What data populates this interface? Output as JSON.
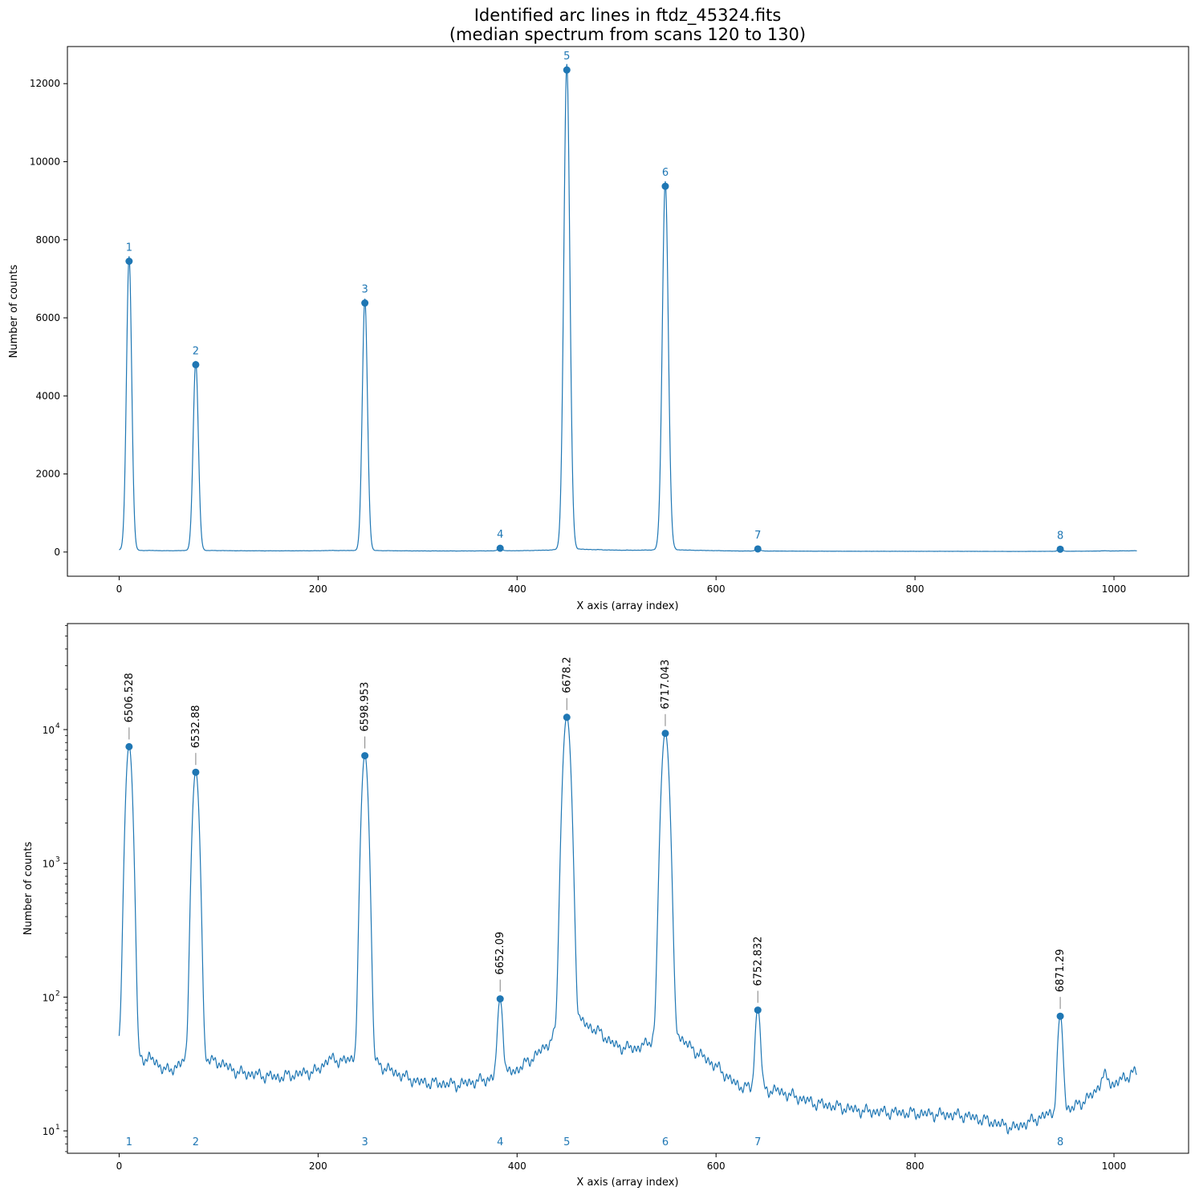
{
  "figure": {
    "title_line1": "Identified arc lines in ftdz_45324.fits",
    "title_line2": "(median spectrum from scans 120 to 130)"
  },
  "colors": {
    "series": "#1f77b4",
    "axis": "#000000",
    "label_tick": "#808080"
  },
  "chart_data": [
    {
      "type": "line",
      "scale": "linear",
      "xlabel": "X axis (array index)",
      "ylabel": "Number of counts",
      "xlim": [
        -52,
        1075
      ],
      "ylim": [
        -620,
        12950
      ],
      "xticks": [
        0,
        200,
        400,
        600,
        800,
        1000
      ],
      "yticks": [
        0,
        2000,
        4000,
        6000,
        8000,
        10000,
        12000
      ],
      "line_markers": [
        {
          "id": "1",
          "x": 10,
          "y": 7450
        },
        {
          "id": "2",
          "x": 77,
          "y": 4800
        },
        {
          "id": "3",
          "x": 247,
          "y": 6380
        },
        {
          "id": "4",
          "x": 383,
          "y": 97
        },
        {
          "id": "5",
          "x": 450,
          "y": 12350
        },
        {
          "id": "6",
          "x": 549,
          "y": 9370
        },
        {
          "id": "7",
          "x": 642,
          "y": 80
        },
        {
          "id": "8",
          "x": 946,
          "y": 72
        }
      ],
      "series": {
        "name": "",
        "spectrum": "median spectrum (scans 120–130)"
      }
    },
    {
      "type": "line",
      "scale": "log",
      "xlabel": "X axis (array index)",
      "ylabel": "Number of counts",
      "xlim": [
        -52,
        1075
      ],
      "ylim": [
        6.8,
        62000
      ],
      "xticks": [
        0,
        200,
        400,
        600,
        800,
        1000
      ],
      "yticks": [
        {
          "value": 10,
          "base": "10",
          "exp": "1"
        },
        {
          "value": 100,
          "base": "10",
          "exp": "2"
        },
        {
          "value": 1000,
          "base": "10",
          "exp": "3"
        },
        {
          "value": 10000,
          "base": "10",
          "exp": "4"
        }
      ],
      "line_markers": [
        {
          "id": "1",
          "x": 10,
          "y": 7450,
          "wavelength": "6506.528"
        },
        {
          "id": "2",
          "x": 77,
          "y": 4800,
          "wavelength": "6532.88"
        },
        {
          "id": "3",
          "x": 247,
          "y": 6380,
          "wavelength": "6598.953"
        },
        {
          "id": "4",
          "x": 383,
          "y": 97,
          "wavelength": "6652.09"
        },
        {
          "id": "5",
          "x": 450,
          "y": 12350,
          "wavelength": "6678.2"
        },
        {
          "id": "6",
          "x": 549,
          "y": 9370,
          "wavelength": "6717.043"
        },
        {
          "id": "7",
          "x": 642,
          "y": 80,
          "wavelength": "6752.832"
        },
        {
          "id": "8",
          "x": 946,
          "y": 72,
          "wavelength": "6871.29"
        }
      ],
      "lines": [
        {
          "x": 10,
          "peak": 7450,
          "w": 2.6
        },
        {
          "x": 77,
          "peak": 4800,
          "w": 2.6
        },
        {
          "x": 247,
          "peak": 6380,
          "w": 2.6
        },
        {
          "x": 383,
          "peak": 70,
          "w": 2.2
        },
        {
          "x": 450,
          "peak": 12300,
          "w": 3.0
        },
        {
          "x": 549,
          "peak": 9340,
          "w": 3.0
        },
        {
          "x": 642,
          "peak": 62,
          "w": 2.2
        },
        {
          "x": 946,
          "peak": 58,
          "w": 2.2
        }
      ],
      "baseline": [
        [
          0,
          40
        ],
        [
          20,
          30
        ],
        [
          30,
          34
        ],
        [
          40,
          30
        ],
        [
          50,
          27
        ],
        [
          60,
          30
        ],
        [
          100,
          32
        ],
        [
          120,
          27
        ],
        [
          140,
          26
        ],
        [
          160,
          25
        ],
        [
          200,
          28
        ],
        [
          210,
          34
        ],
        [
          230,
          32
        ],
        [
          270,
          28
        ],
        [
          300,
          23
        ],
        [
          340,
          22
        ],
        [
          370,
          24
        ],
        [
          400,
          28
        ],
        [
          420,
          36
        ],
        [
          440,
          46
        ],
        [
          460,
          62
        ],
        [
          480,
          55
        ],
        [
          500,
          42
        ],
        [
          520,
          40
        ],
        [
          540,
          44
        ],
        [
          560,
          48
        ],
        [
          580,
          38
        ],
        [
          600,
          30
        ],
        [
          620,
          22
        ],
        [
          640,
          20
        ],
        [
          660,
          20
        ],
        [
          700,
          16
        ],
        [
          750,
          14
        ],
        [
          800,
          13.5
        ],
        [
          850,
          13
        ],
        [
          880,
          11.5
        ],
        [
          900,
          10.5
        ],
        [
          930,
          13
        ],
        [
          960,
          15
        ],
        [
          980,
          19
        ],
        [
          990,
          26
        ],
        [
          1000,
          22
        ],
        [
          1010,
          25
        ],
        [
          1023,
          28
        ]
      ]
    }
  ]
}
